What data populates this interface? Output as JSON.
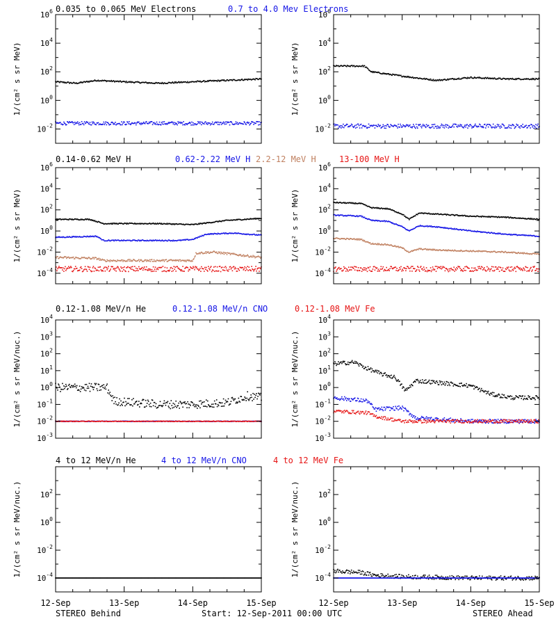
{
  "colors": {
    "black": "#000000",
    "blue": "#1414e6",
    "brown": "#c08060",
    "red": "#e61414"
  },
  "footer": {
    "left": "STEREO Behind",
    "center": "Start: 12-Sep-2011 00:00 UTC",
    "right": "STEREO Ahead"
  },
  "x_axis": {
    "ticks": [
      "12-Sep",
      "13-Sep",
      "14-Sep",
      "15-Sep"
    ],
    "range_days": [
      0,
      3
    ]
  },
  "rows": [
    {
      "legend": [
        {
          "text": "0.035 to 0.065 MeV Electrons",
          "color": "black"
        },
        {
          "text": "0.7 to 4.0 Mev Electrons",
          "color": "blue"
        }
      ],
      "ylabel": "1/(cm² s sr MeV)",
      "ylim_exp": [
        -3,
        6
      ],
      "tick_exps": [
        -2,
        0,
        2,
        4,
        6
      ]
    },
    {
      "legend": [
        {
          "text": "0.14-0.62 MeV H",
          "color": "black"
        },
        {
          "text": "0.62-2.22 MeV H",
          "color": "blue"
        },
        {
          "text": "2.2-12 MeV H",
          "color": "brown"
        },
        {
          "text": "13-100 MeV H",
          "color": "red"
        }
      ],
      "ylabel": "1/(cm² s sr MeV)",
      "ylim_exp": [
        -5,
        6
      ],
      "tick_exps": [
        -4,
        -2,
        0,
        2,
        4,
        6
      ]
    },
    {
      "legend": [
        {
          "text": "0.12-1.08 MeV/n He",
          "color": "black"
        },
        {
          "text": "0.12-1.08 MeV/n CNO",
          "color": "blue"
        },
        {
          "text": "0.12-1.08 MeV Fe",
          "color": "red"
        }
      ],
      "ylabel": "1/(cm² s sr MeV/nuc.)",
      "ylim_exp": [
        -3,
        4
      ],
      "tick_exps": [
        -3,
        -2,
        -1,
        0,
        1,
        2,
        3,
        4
      ]
    },
    {
      "legend": [
        {
          "text": "4 to 12 MeV/n He",
          "color": "black"
        },
        {
          "text": "4 to 12 MeV/n CNO",
          "color": "blue"
        },
        {
          "text": "4 to 12 MeV Fe",
          "color": "red"
        }
      ],
      "ylabel": "1/(cm² s sr MeV/nuc.)",
      "ylim_exp": [
        -5,
        4
      ],
      "tick_exps": [
        -4,
        -2,
        0,
        2
      ]
    }
  ],
  "chart_data": [
    {
      "type": "scatter",
      "panel": "STEREO Behind",
      "row": 0,
      "ylog": true,
      "series": [
        {
          "name": "0.035 to 0.065 MeV Electrons",
          "color": "black",
          "x": [
            0,
            0.3,
            0.6,
            1.0,
            1.5,
            2.0,
            2.5,
            3.0
          ],
          "y_log10": [
            1.3,
            1.2,
            1.4,
            1.3,
            1.2,
            1.3,
            1.4,
            1.5
          ],
          "scatter": 0.05
        },
        {
          "name": "0.7 to 4.0 Mev Electrons",
          "color": "blue",
          "x": [
            0,
            1.0,
            2.0,
            3.0
          ],
          "y_log10": [
            -1.6,
            -1.6,
            -1.6,
            -1.6
          ],
          "scatter": 0.12
        }
      ]
    },
    {
      "type": "scatter",
      "panel": "STEREO Ahead",
      "row": 0,
      "ylog": true,
      "series": [
        {
          "name": "0.035 to 0.065 MeV Electrons",
          "color": "black",
          "x": [
            0,
            0.45,
            0.55,
            1.0,
            1.5,
            2.0,
            2.5,
            3.0
          ],
          "y_log10": [
            2.4,
            2.4,
            2.0,
            1.7,
            1.4,
            1.6,
            1.5,
            1.5
          ],
          "scatter": 0.05
        },
        {
          "name": "0.7 to 4.0 Mev Electrons",
          "color": "blue",
          "x": [
            0,
            1.0,
            2.0,
            3.0
          ],
          "y_log10": [
            -1.8,
            -1.8,
            -1.8,
            -1.8
          ],
          "scatter": 0.15
        }
      ]
    },
    {
      "type": "scatter",
      "panel": "STEREO Behind",
      "row": 1,
      "ylog": true,
      "series": [
        {
          "name": "0.14-0.62 MeV H",
          "color": "black",
          "x": [
            0,
            0.5,
            0.7,
            1.0,
            1.5,
            2.0,
            2.5,
            3.0
          ],
          "y_log10": [
            1.1,
            1.1,
            0.7,
            0.7,
            0.7,
            0.6,
            1.0,
            1.2
          ],
          "scatter": 0.05
        },
        {
          "name": "0.62-2.22 MeV H",
          "color": "blue",
          "x": [
            0,
            0.6,
            0.7,
            1.2,
            1.8,
            2.0,
            2.2,
            2.6,
            3.0
          ],
          "y_log10": [
            -0.6,
            -0.5,
            -0.9,
            -0.9,
            -0.9,
            -0.8,
            -0.3,
            -0.2,
            -0.4
          ],
          "scatter": 0.05
        },
        {
          "name": "2.2-12 MeV H",
          "color": "brown",
          "x": [
            0,
            0.6,
            0.7,
            1.5,
            2.0,
            2.05,
            2.3,
            3.0
          ],
          "y_log10": [
            -2.5,
            -2.6,
            -2.8,
            -2.8,
            -2.8,
            -2.1,
            -2.0,
            -2.5
          ],
          "scatter": 0.1
        },
        {
          "name": "13-100 MeV H",
          "color": "red",
          "x": [
            0,
            1.0,
            2.0,
            3.0
          ],
          "y_log10": [
            -3.6,
            -3.6,
            -3.6,
            -3.6
          ],
          "scatter": 0.25
        }
      ]
    },
    {
      "type": "scatter",
      "panel": "STEREO Ahead",
      "row": 1,
      "ylog": true,
      "series": [
        {
          "name": "0.14-0.62 MeV H",
          "color": "black",
          "x": [
            0,
            0.4,
            0.55,
            0.8,
            1.0,
            1.1,
            1.25,
            1.5,
            2.0,
            2.5,
            3.0
          ],
          "y_log10": [
            2.7,
            2.6,
            2.2,
            2.1,
            1.6,
            1.1,
            1.7,
            1.6,
            1.4,
            1.3,
            1.1
          ],
          "scatter": 0.05
        },
        {
          "name": "0.62-2.22 MeV H",
          "color": "blue",
          "x": [
            0,
            0.4,
            0.55,
            0.8,
            1.0,
            1.1,
            1.25,
            1.5,
            2.0,
            2.5,
            3.0
          ],
          "y_log10": [
            1.5,
            1.4,
            1.0,
            0.9,
            0.4,
            0.0,
            0.5,
            0.4,
            0.0,
            -0.3,
            -0.5
          ],
          "scatter": 0.05
        },
        {
          "name": "2.2-12 MeV H",
          "color": "brown",
          "x": [
            0,
            0.4,
            0.55,
            0.8,
            1.0,
            1.1,
            1.25,
            1.5,
            2.0,
            2.5,
            3.0
          ],
          "y_log10": [
            -0.7,
            -0.8,
            -1.2,
            -1.3,
            -1.6,
            -2.0,
            -1.7,
            -1.8,
            -1.9,
            -2.0,
            -2.2
          ],
          "scatter": 0.06
        },
        {
          "name": "13-100 MeV H",
          "color": "red",
          "x": [
            0,
            1.0,
            2.0,
            3.0
          ],
          "y_log10": [
            -3.6,
            -3.6,
            -3.6,
            -3.6
          ],
          "scatter": 0.25
        }
      ]
    },
    {
      "type": "scatter",
      "panel": "STEREO Behind",
      "row": 2,
      "ylog": true,
      "series": [
        {
          "name": "0.12-1.08 MeV/n He",
          "color": "black",
          "x": [
            0,
            0.5,
            0.75,
            0.85,
            1.5,
            2.0,
            2.5,
            2.8,
            3.0
          ],
          "y_log10": [
            0.0,
            0.0,
            0.0,
            -0.8,
            -1.0,
            -1.0,
            -0.9,
            -0.5,
            -0.6
          ],
          "scatter": 0.25
        },
        {
          "name": "0.12-1.08 MeV/n CNO",
          "color": "blue",
          "x": [
            0,
            1.0,
            2.0,
            3.0
          ],
          "y_log10": [
            -2.0,
            -2.0,
            -2.0,
            -2.0
          ],
          "scatter": 0.02
        },
        {
          "name": "0.12-1.08 MeV Fe",
          "color": "red",
          "x": [
            0,
            1.0,
            2.0,
            3.0
          ],
          "y_log10": [
            -2.0,
            -2.0,
            -2.0,
            -2.0
          ],
          "scatter": 0.02
        }
      ]
    },
    {
      "type": "scatter",
      "panel": "STEREO Ahead",
      "row": 2,
      "ylog": true,
      "series": [
        {
          "name": "0.12-1.08 MeV/n He",
          "color": "black",
          "x": [
            0,
            0.3,
            0.45,
            0.7,
            0.9,
            1.05,
            1.2,
            1.5,
            2.0,
            2.3,
            2.6,
            3.0
          ],
          "y_log10": [
            1.4,
            1.5,
            1.2,
            0.8,
            0.6,
            -0.2,
            0.4,
            0.3,
            0.1,
            -0.4,
            -0.6,
            -0.6
          ],
          "scatter": 0.12
        },
        {
          "name": "0.12-1.08 MeV/n CNO",
          "color": "blue",
          "x": [
            0,
            0.5,
            0.6,
            1.0,
            1.2,
            2.0,
            3.0
          ],
          "y_log10": [
            -0.6,
            -0.8,
            -1.3,
            -1.2,
            -1.8,
            -2.0,
            -2.0
          ],
          "scatter": 0.12
        },
        {
          "name": "0.12-1.08 MeV Fe",
          "color": "red",
          "x": [
            0,
            0.5,
            0.6,
            1.0,
            3.0
          ],
          "y_log10": [
            -1.4,
            -1.5,
            -1.7,
            -2.0,
            -2.0
          ],
          "scatter": 0.1
        }
      ]
    },
    {
      "type": "scatter",
      "panel": "STEREO Behind",
      "row": 3,
      "ylog": true,
      "series": [
        {
          "name": "4 to 12 MeV/n He",
          "color": "black",
          "x": [
            0,
            1.0,
            2.0,
            3.0
          ],
          "y_log10": [
            -4.0,
            -4.0,
            -4.0,
            -4.0
          ],
          "scatter": 0.0
        }
      ]
    },
    {
      "type": "scatter",
      "panel": "STEREO Ahead",
      "row": 3,
      "ylog": true,
      "series": [
        {
          "name": "4 to 12 MeV/n He",
          "color": "black",
          "x": [
            0,
            0.4,
            0.6,
            1.0,
            2.0,
            3.0
          ],
          "y_log10": [
            -3.5,
            -3.6,
            -3.8,
            -3.9,
            -4.0,
            -4.0
          ],
          "scatter": 0.15
        },
        {
          "name": "4 to 12 MeV/n CNO",
          "color": "blue",
          "x": [
            0,
            1.0,
            2.0,
            3.0
          ],
          "y_log10": [
            -4.0,
            -4.0,
            -4.0,
            -4.0
          ],
          "scatter": 0.0
        }
      ]
    }
  ]
}
